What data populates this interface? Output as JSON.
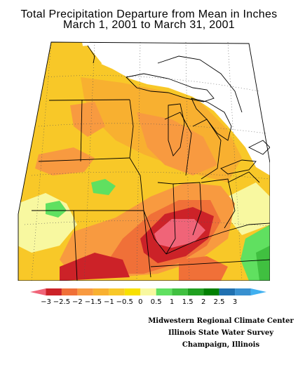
{
  "title": {
    "line1": "Total Precipitation Departure from Mean in Inches",
    "line2": "March 1, 2001 to March 31, 2001"
  },
  "map": {
    "region": "Midwestern United States",
    "dry_center": "southern Illinois / Indiana / Kentucky",
    "wet_areas": [
      "northern Missouri",
      "eastern Kansas",
      "southern Ohio / West Virginia"
    ]
  },
  "legend": {
    "bins": [
      {
        "color": "#f06478"
      },
      {
        "color": "#cc2228"
      },
      {
        "color": "#f07038"
      },
      {
        "color": "#f89a40"
      },
      {
        "color": "#f8b030"
      },
      {
        "color": "#f8c828"
      },
      {
        "color": "#f8e000"
      },
      {
        "color": "#f8f8a0"
      },
      {
        "color": "#60e060"
      },
      {
        "color": "#40c040"
      },
      {
        "color": "#20a020"
      },
      {
        "color": "#008000"
      },
      {
        "color": "#2070b0"
      },
      {
        "color": "#3890d0"
      },
      {
        "color": "#40b0f0"
      }
    ],
    "labels": [
      "−3",
      "−2.5",
      "−2",
      "−1.5",
      "−1",
      "−0.5",
      "0",
      "0.5",
      "1",
      "1.5",
      "2",
      "2.5",
      "3"
    ]
  },
  "credits": {
    "line1": "Midwestern Regional Climate Center",
    "line2": "Illinois State Water Survey",
    "line3": "Champaign, Illinois"
  }
}
